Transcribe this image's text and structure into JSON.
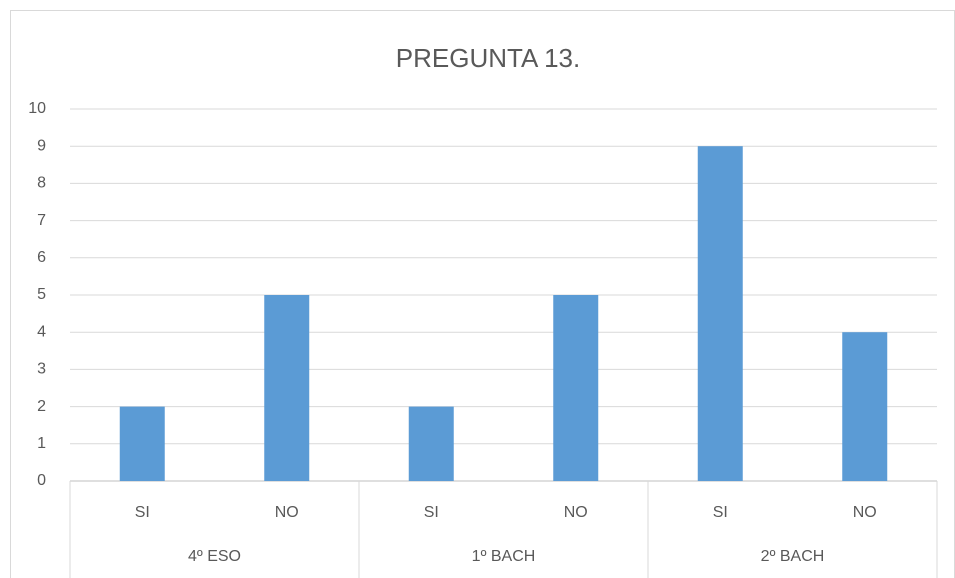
{
  "chart_data": {
    "type": "bar",
    "title": "PREGUNTA 13.",
    "categories": [
      "SI",
      "NO",
      "SI",
      "NO",
      "SI",
      "NO"
    ],
    "groups": [
      "4º ESO",
      "1º BACH",
      "2º BACH"
    ],
    "values": [
      2,
      5,
      2,
      5,
      9,
      4
    ],
    "color": "#5b9bd5",
    "ylim": [
      0,
      10
    ],
    "yticks": [
      0,
      1,
      2,
      3,
      4,
      5,
      6,
      7,
      8,
      9,
      10
    ],
    "grid": true
  }
}
